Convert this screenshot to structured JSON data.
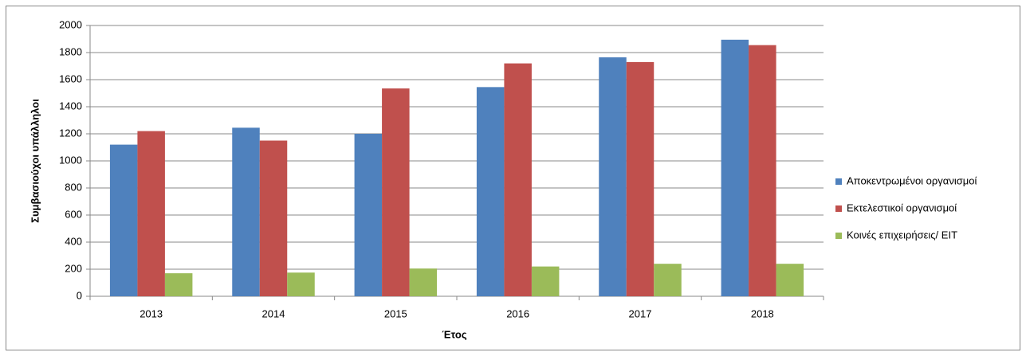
{
  "chart_data": {
    "type": "bar",
    "x_label": "Έτος",
    "y_label": "Συμβασιούχοι υπάλληλοι",
    "categories": [
      "2013",
      "2014",
      "2015",
      "2016",
      "2017",
      "2018"
    ],
    "series": [
      {
        "name": "Αποκεντρωμένοι οργανισμοί",
        "color": "#4f81bd",
        "values": [
          1120,
          1245,
          1200,
          1545,
          1765,
          1895
        ]
      },
      {
        "name": "Εκτελεστικοί οργανισμοί",
        "color": "#c0504d",
        "values": [
          1220,
          1150,
          1535,
          1720,
          1730,
          1855
        ]
      },
      {
        "name": "Κοινές επιχειρήσεις/ ΕΙΤ",
        "color": "#9bbb59",
        "values": [
          170,
          175,
          205,
          220,
          240,
          240
        ]
      }
    ],
    "ylim": [
      0,
      2000
    ],
    "yticks": [
      0,
      200,
      400,
      600,
      800,
      1000,
      1200,
      1400,
      1600,
      1800,
      2000
    ],
    "grid": true,
    "legend": "right"
  }
}
